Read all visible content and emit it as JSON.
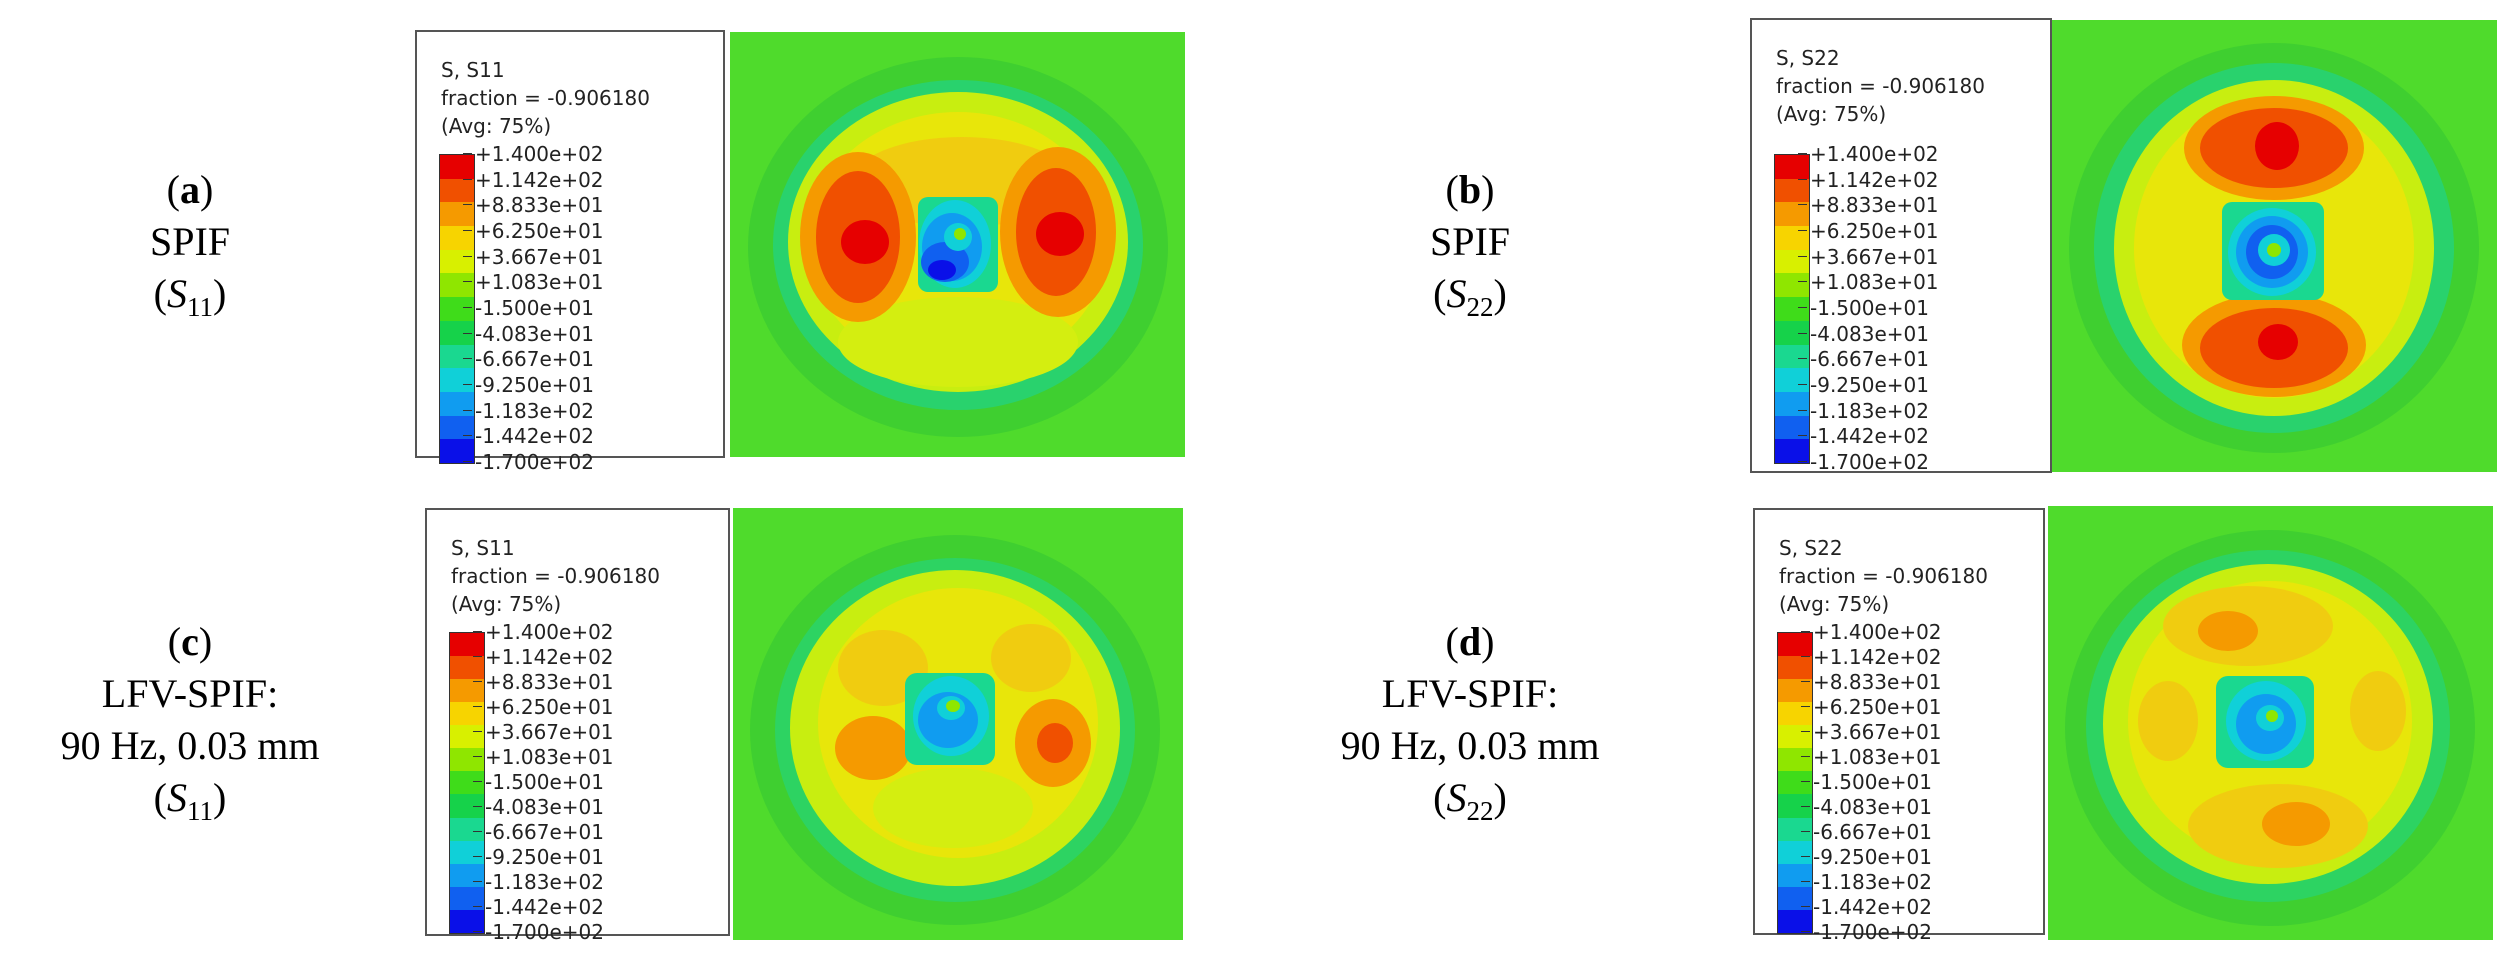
{
  "colors": {
    "scale": [
      "#e60000",
      "#f05000",
      "#f59a00",
      "#f7d400",
      "#d8f000",
      "#8fe600",
      "#3fdc1a",
      "#16d24a",
      "#1ad890",
      "#10d0d8",
      "#109cf0",
      "#1060f0",
      "#0a10e8"
    ],
    "background_field": "#4fdb2c"
  },
  "legend_values": [
    "+1.400e+02",
    "+1.142e+02",
    "+8.833e+01",
    "+6.250e+01",
    "+3.667e+01",
    "+1.083e+01",
    "-1.500e+01",
    "-4.083e+01",
    "-6.667e+01",
    "-9.250e+01",
    "-1.183e+02",
    "-1.442e+02",
    "-1.700e+02"
  ],
  "panels": [
    {
      "id": "a",
      "letter": "a",
      "line1": "SPIF",
      "line2": "",
      "component": "S",
      "subscript": "11",
      "legend": {
        "variable": "S, S11",
        "fraction": "fraction = -0.906180",
        "avg": "(Avg: 75%)"
      }
    },
    {
      "id": "b",
      "letter": "b",
      "line1": "SPIF",
      "line2": "",
      "component": "S",
      "subscript": "22",
      "legend": {
        "variable": "S, S22",
        "fraction": "fraction = -0.906180",
        "avg": "(Avg: 75%)"
      }
    },
    {
      "id": "c",
      "letter": "c",
      "line1": "LFV-SPIF:",
      "line2": "90 Hz, 0.03 mm",
      "component": "S",
      "subscript": "11",
      "legend": {
        "variable": "S, S11",
        "fraction": "fraction = -0.906180",
        "avg": "(Avg: 75%)"
      }
    },
    {
      "id": "d",
      "letter": "d",
      "line1": "LFV-SPIF:",
      "line2": "90 Hz, 0.03 mm",
      "component": "S",
      "subscript": "22",
      "legend": {
        "variable": "S, S22",
        "fraction": "fraction = -0.906180",
        "avg": "(Avg: 75%)"
      }
    }
  ]
}
